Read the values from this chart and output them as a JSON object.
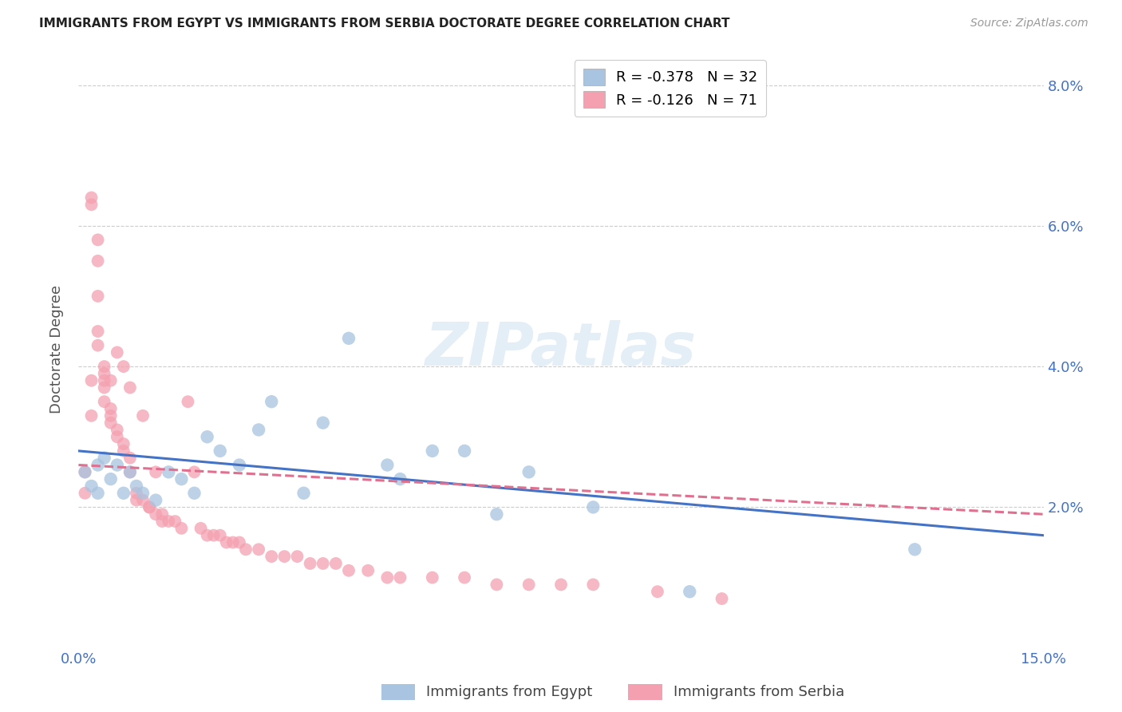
{
  "title": "IMMIGRANTS FROM EGYPT VS IMMIGRANTS FROM SERBIA DOCTORATE DEGREE CORRELATION CHART",
  "source": "Source: ZipAtlas.com",
  "ylabel": "Doctorate Degree",
  "xlim": [
    0.0,
    0.15
  ],
  "ylim": [
    0.0,
    0.085
  ],
  "legend_egypt": "R = -0.378   N = 32",
  "legend_serbia": "R = -0.126   N = 71",
  "egypt_color": "#a8c4e0",
  "serbia_color": "#f4a0b0",
  "egypt_line_color": "#4472c4",
  "serbia_line_color": "#e07090",
  "egypt_scatter_x": [
    0.001,
    0.002,
    0.003,
    0.003,
    0.004,
    0.005,
    0.006,
    0.007,
    0.008,
    0.009,
    0.01,
    0.012,
    0.014,
    0.016,
    0.018,
    0.02,
    0.022,
    0.025,
    0.028,
    0.03,
    0.035,
    0.038,
    0.042,
    0.048,
    0.05,
    0.055,
    0.06,
    0.065,
    0.07,
    0.08,
    0.095,
    0.13
  ],
  "egypt_scatter_y": [
    0.025,
    0.023,
    0.026,
    0.022,
    0.027,
    0.024,
    0.026,
    0.022,
    0.025,
    0.023,
    0.022,
    0.021,
    0.025,
    0.024,
    0.022,
    0.03,
    0.028,
    0.026,
    0.031,
    0.035,
    0.022,
    0.032,
    0.044,
    0.026,
    0.024,
    0.028,
    0.028,
    0.019,
    0.025,
    0.02,
    0.008,
    0.014
  ],
  "serbia_scatter_x": [
    0.001,
    0.001,
    0.002,
    0.002,
    0.002,
    0.002,
    0.003,
    0.003,
    0.003,
    0.003,
    0.003,
    0.004,
    0.004,
    0.004,
    0.004,
    0.004,
    0.005,
    0.005,
    0.005,
    0.005,
    0.006,
    0.006,
    0.006,
    0.007,
    0.007,
    0.007,
    0.008,
    0.008,
    0.008,
    0.009,
    0.009,
    0.01,
    0.01,
    0.011,
    0.011,
    0.012,
    0.012,
    0.013,
    0.013,
    0.014,
    0.015,
    0.016,
    0.017,
    0.018,
    0.019,
    0.02,
    0.021,
    0.022,
    0.023,
    0.024,
    0.025,
    0.026,
    0.028,
    0.03,
    0.032,
    0.034,
    0.036,
    0.038,
    0.04,
    0.042,
    0.045,
    0.048,
    0.05,
    0.055,
    0.06,
    0.065,
    0.07,
    0.075,
    0.08,
    0.09,
    0.1
  ],
  "serbia_scatter_y": [
    0.025,
    0.022,
    0.064,
    0.063,
    0.038,
    0.033,
    0.058,
    0.055,
    0.05,
    0.045,
    0.043,
    0.04,
    0.039,
    0.037,
    0.038,
    0.035,
    0.034,
    0.033,
    0.038,
    0.032,
    0.031,
    0.03,
    0.042,
    0.029,
    0.028,
    0.04,
    0.027,
    0.037,
    0.025,
    0.022,
    0.021,
    0.021,
    0.033,
    0.02,
    0.02,
    0.019,
    0.025,
    0.019,
    0.018,
    0.018,
    0.018,
    0.017,
    0.035,
    0.025,
    0.017,
    0.016,
    0.016,
    0.016,
    0.015,
    0.015,
    0.015,
    0.014,
    0.014,
    0.013,
    0.013,
    0.013,
    0.012,
    0.012,
    0.012,
    0.011,
    0.011,
    0.01,
    0.01,
    0.01,
    0.01,
    0.009,
    0.009,
    0.009,
    0.009,
    0.008,
    0.007
  ],
  "egypt_line_x": [
    0.0,
    0.15
  ],
  "egypt_line_y": [
    0.028,
    0.016
  ],
  "serbia_line_x": [
    0.0,
    0.15
  ],
  "serbia_line_y": [
    0.026,
    0.019
  ],
  "title_color": "#222222",
  "axis_color": "#4472c4",
  "grid_color": "#cccccc",
  "background_color": "#ffffff"
}
